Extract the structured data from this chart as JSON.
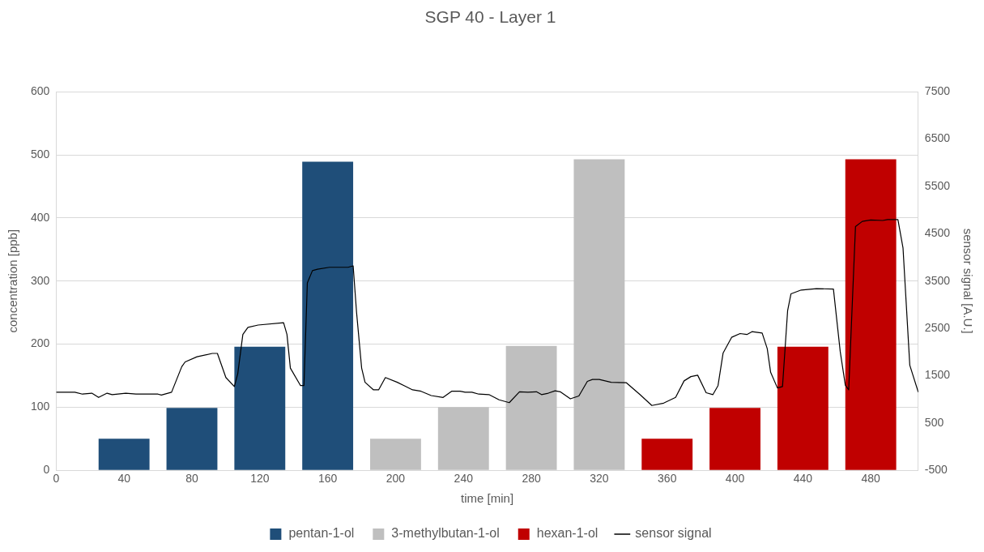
{
  "chart_data": {
    "type": "bar",
    "title": "SGP 40 - Layer 1",
    "xlabel": "time [min]",
    "ylabel": "concentration [ppb]",
    "y2label": "sensor signal [A.U.]",
    "xlim": [
      0,
      508
    ],
    "xticks": [
      0,
      40,
      80,
      120,
      160,
      200,
      240,
      280,
      320,
      360,
      400,
      440,
      480
    ],
    "ylim": [
      0,
      600
    ],
    "yticks": [
      0,
      100,
      200,
      300,
      400,
      500,
      600
    ],
    "y2lim": [
      -500,
      7500
    ],
    "y2ticks": [
      -500,
      500,
      1500,
      2500,
      3500,
      4500,
      5500,
      6500,
      7500
    ],
    "grid": "y",
    "legend": "bottom",
    "marker": "none",
    "series": [
      {
        "name": "pentan-1-ol",
        "color": "#1f4e79",
        "x": [
          40,
          80,
          120,
          160
        ],
        "values": [
          50,
          99,
          196,
          489
        ]
      },
      {
        "name": "3-methylbutan-1-ol",
        "color": "#bfbfbf",
        "x": [
          200,
          240,
          280,
          320
        ],
        "values": [
          50,
          100,
          197,
          493
        ]
      },
      {
        "name": "hexan-1-ol",
        "color": "#c00000",
        "x": [
          360,
          400,
          440,
          480
        ],
        "values": [
          50,
          99,
          196,
          493
        ]
      },
      {
        "name": "sensor signal",
        "type": "line",
        "axis": "y2",
        "color": "#000000",
        "x": [
          0,
          11,
          15.5,
          21,
          25,
          30,
          33,
          41,
          47,
          60,
          62,
          68,
          74,
          76,
          83,
          92,
          95,
          100,
          105,
          107,
          110,
          113,
          119,
          134,
          136,
          138,
          144,
          146,
          148,
          151,
          154,
          161,
          172,
          175,
          177,
          180,
          182,
          187,
          190,
          194,
          201,
          205,
          210,
          215,
          221,
          228,
          233,
          238,
          241,
          245,
          249,
          255,
          261,
          267,
          273,
          278,
          283,
          286,
          290,
          294,
          297,
          303,
          308,
          313,
          316,
          320,
          327,
          336,
          344,
          351,
          358,
          365,
          370,
          374,
          378,
          383,
          387,
          390,
          393,
          398,
          403,
          407,
          410,
          416,
          419,
          421,
          425,
          428,
          431,
          433,
          439,
          448,
          458,
          462,
          465,
          467,
          471,
          475,
          480,
          487,
          490,
          496,
          499,
          503,
          508
        ],
        "values": [
          1150,
          1150,
          1110,
          1130,
          1040,
          1130,
          1100,
          1130,
          1110,
          1110,
          1090,
          1150,
          1690,
          1790,
          1900,
          1970,
          1970,
          1460,
          1270,
          1540,
          2370,
          2520,
          2570,
          2620,
          2370,
          1660,
          1290,
          1290,
          3460,
          3720,
          3750,
          3790,
          3790,
          3820,
          2840,
          1660,
          1360,
          1200,
          1200,
          1460,
          1360,
          1290,
          1200,
          1170,
          1080,
          1040,
          1170,
          1170,
          1150,
          1150,
          1110,
          1100,
          990,
          930,
          1160,
          1150,
          1160,
          1100,
          1130,
          1180,
          1160,
          1010,
          1070,
          1380,
          1420,
          1420,
          1360,
          1350,
          1100,
          870,
          920,
          1040,
          1390,
          1480,
          1510,
          1140,
          1100,
          1290,
          1980,
          2310,
          2390,
          2370,
          2430,
          2400,
          2070,
          1570,
          1240,
          1270,
          2870,
          3230,
          3310,
          3340,
          3330,
          2010,
          1300,
          1200,
          4650,
          4760,
          4790,
          4780,
          4800,
          4800,
          4200,
          1720,
          1150
        ]
      }
    ]
  }
}
